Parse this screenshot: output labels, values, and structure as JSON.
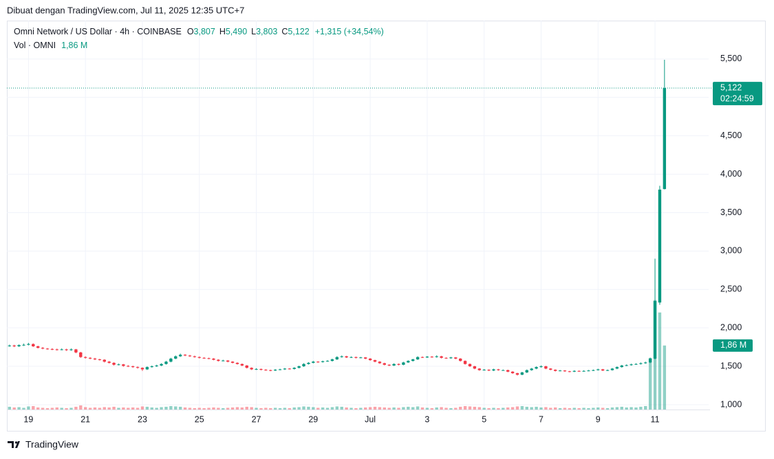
{
  "header": "Dibuat dengan TradingView.com, Jul 11, 2025 12:35 UTC+7",
  "footer": "TradingView",
  "chart_data": {
    "type": "candlestick",
    "title": "Omni Network / US Dollar · 4h · COINBASE",
    "ohlc_legend": [
      {
        "key": "O",
        "value": "3,807"
      },
      {
        "key": "H",
        "value": "5,490"
      },
      {
        "key": "L",
        "value": "3,803"
      },
      {
        "key": "C",
        "value": "5,122"
      }
    ],
    "change": "+1,315 (+34,54%)",
    "volume_title": "Vol · OMNI",
    "volume_label": "1,86 M",
    "last_price_label": "5,122",
    "countdown": "02:24:59",
    "up_color": "#089981",
    "down_color": "#f23645",
    "grid": true,
    "ylim": [
      937,
      6000
    ],
    "yticks": [
      {
        "value": 1000,
        "label": "1,000"
      },
      {
        "value": 1500,
        "label": "1,500"
      },
      {
        "value": 2000,
        "label": "2,000"
      },
      {
        "value": 2500,
        "label": "2,500"
      },
      {
        "value": 3000,
        "label": "3,000"
      },
      {
        "value": 3500,
        "label": "3,500"
      },
      {
        "value": 4000,
        "label": "4,000"
      },
      {
        "value": 4500,
        "label": "4,500"
      },
      {
        "value": 5000,
        "label": "5,000"
      },
      {
        "value": 5500,
        "label": "5,500"
      }
    ],
    "y2lim": [
      0,
      11.3
    ],
    "xlim": [
      -0.55,
      147.3
    ],
    "xticks": [
      {
        "value": 4,
        "label": "19"
      },
      {
        "value": 16,
        "label": "21"
      },
      {
        "value": 28,
        "label": "23"
      },
      {
        "value": 40,
        "label": "25"
      },
      {
        "value": 52,
        "label": "27"
      },
      {
        "value": 64,
        "label": "29"
      },
      {
        "value": 76,
        "label": "Jul"
      },
      {
        "value": 88,
        "label": "3"
      },
      {
        "value": 100,
        "label": "5"
      },
      {
        "value": 112,
        "label": "7"
      },
      {
        "value": 124,
        "label": "9"
      },
      {
        "value": 136,
        "label": "11"
      }
    ],
    "ohlc": [
      [
        1765,
        1782,
        1755,
        1770
      ],
      [
        1770,
        1780,
        1750,
        1760
      ],
      [
        1760,
        1785,
        1752,
        1775
      ],
      [
        1775,
        1795,
        1765,
        1780
      ],
      [
        1780,
        1805,
        1772,
        1790
      ],
      [
        1790,
        1798,
        1752,
        1760
      ],
      [
        1760,
        1768,
        1732,
        1740
      ],
      [
        1740,
        1750,
        1722,
        1730
      ],
      [
        1730,
        1738,
        1716,
        1725
      ],
      [
        1725,
        1735,
        1710,
        1720
      ],
      [
        1720,
        1730,
        1705,
        1715
      ],
      [
        1715,
        1732,
        1708,
        1720
      ],
      [
        1720,
        1728,
        1700,
        1710
      ],
      [
        1710,
        1732,
        1702,
        1720
      ],
      [
        1720,
        1726,
        1670,
        1680
      ],
      [
        1680,
        1688,
        1610,
        1620
      ],
      [
        1620,
        1630,
        1600,
        1610
      ],
      [
        1610,
        1618,
        1592,
        1600
      ],
      [
        1600,
        1610,
        1580,
        1590
      ],
      [
        1590,
        1598,
        1575,
        1585
      ],
      [
        1585,
        1592,
        1550,
        1560
      ],
      [
        1560,
        1568,
        1535,
        1545
      ],
      [
        1545,
        1552,
        1510,
        1520
      ],
      [
        1520,
        1535,
        1512,
        1525
      ],
      [
        1525,
        1530,
        1495,
        1505
      ],
      [
        1505,
        1515,
        1490,
        1500
      ],
      [
        1500,
        1508,
        1480,
        1490
      ],
      [
        1490,
        1498,
        1470,
        1480
      ],
      [
        1480,
        1486,
        1440,
        1460
      ],
      [
        1460,
        1498,
        1452,
        1490
      ],
      [
        1490,
        1510,
        1482,
        1500
      ],
      [
        1500,
        1520,
        1492,
        1510
      ],
      [
        1510,
        1540,
        1502,
        1530
      ],
      [
        1530,
        1570,
        1522,
        1560
      ],
      [
        1560,
        1610,
        1552,
        1600
      ],
      [
        1600,
        1640,
        1592,
        1630
      ],
      [
        1630,
        1665,
        1622,
        1650
      ],
      [
        1650,
        1658,
        1632,
        1640
      ],
      [
        1640,
        1648,
        1622,
        1630
      ],
      [
        1630,
        1638,
        1612,
        1620
      ],
      [
        1620,
        1628,
        1602,
        1610
      ],
      [
        1610,
        1618,
        1598,
        1605
      ],
      [
        1605,
        1612,
        1592,
        1600
      ],
      [
        1600,
        1606,
        1578,
        1585
      ],
      [
        1585,
        1592,
        1562,
        1570
      ],
      [
        1570,
        1585,
        1564,
        1575
      ],
      [
        1575,
        1580,
        1552,
        1560
      ],
      [
        1560,
        1566,
        1538,
        1545
      ],
      [
        1545,
        1552,
        1522,
        1530
      ],
      [
        1530,
        1536,
        1502,
        1510
      ],
      [
        1510,
        1516,
        1472,
        1480
      ],
      [
        1480,
        1486,
        1452,
        1460
      ],
      [
        1460,
        1475,
        1452,
        1465
      ],
      [
        1465,
        1470,
        1446,
        1455
      ],
      [
        1455,
        1462,
        1442,
        1450
      ],
      [
        1450,
        1456,
        1436,
        1445
      ],
      [
        1445,
        1464,
        1438,
        1455
      ],
      [
        1455,
        1468,
        1448,
        1460
      ],
      [
        1460,
        1478,
        1452,
        1470
      ],
      [
        1470,
        1476,
        1458,
        1465
      ],
      [
        1465,
        1488,
        1458,
        1480
      ],
      [
        1480,
        1508,
        1472,
        1500
      ],
      [
        1500,
        1540,
        1492,
        1530
      ],
      [
        1530,
        1555,
        1522,
        1545
      ],
      [
        1545,
        1570,
        1538,
        1560
      ],
      [
        1560,
        1566,
        1546,
        1555
      ],
      [
        1555,
        1574,
        1548,
        1565
      ],
      [
        1565,
        1580,
        1558,
        1570
      ],
      [
        1570,
        1600,
        1562,
        1590
      ],
      [
        1590,
        1630,
        1582,
        1620
      ],
      [
        1620,
        1640,
        1612,
        1630
      ],
      [
        1630,
        1636,
        1608,
        1615
      ],
      [
        1615,
        1628,
        1608,
        1620
      ],
      [
        1620,
        1626,
        1602,
        1610
      ],
      [
        1610,
        1622,
        1604,
        1615
      ],
      [
        1615,
        1620,
        1592,
        1600
      ],
      [
        1600,
        1606,
        1572,
        1580
      ],
      [
        1580,
        1586,
        1552,
        1560
      ],
      [
        1560,
        1566,
        1532,
        1540
      ],
      [
        1540,
        1546,
        1512,
        1520
      ],
      [
        1520,
        1526,
        1502,
        1510
      ],
      [
        1510,
        1538,
        1504,
        1530
      ],
      [
        1530,
        1536,
        1512,
        1520
      ],
      [
        1520,
        1558,
        1514,
        1550
      ],
      [
        1550,
        1578,
        1544,
        1570
      ],
      [
        1570,
        1598,
        1562,
        1590
      ],
      [
        1590,
        1630,
        1582,
        1620
      ],
      [
        1620,
        1628,
        1608,
        1615
      ],
      [
        1615,
        1634,
        1608,
        1625
      ],
      [
        1625,
        1632,
        1612,
        1620
      ],
      [
        1620,
        1642,
        1612,
        1630
      ],
      [
        1630,
        1636,
        1602,
        1610
      ],
      [
        1610,
        1616,
        1598,
        1605
      ],
      [
        1605,
        1622,
        1598,
        1615
      ],
      [
        1615,
        1620,
        1592,
        1600
      ],
      [
        1600,
        1606,
        1562,
        1570
      ],
      [
        1570,
        1576,
        1522,
        1530
      ],
      [
        1530,
        1536,
        1492,
        1500
      ],
      [
        1500,
        1506,
        1462,
        1470
      ],
      [
        1470,
        1476,
        1442,
        1450
      ],
      [
        1450,
        1464,
        1444,
        1455
      ],
      [
        1455,
        1460,
        1438,
        1445
      ],
      [
        1445,
        1468,
        1438,
        1460
      ],
      [
        1460,
        1466,
        1442,
        1450
      ],
      [
        1450,
        1458,
        1442,
        1450
      ],
      [
        1450,
        1456,
        1422,
        1430
      ],
      [
        1430,
        1436,
        1402,
        1410
      ],
      [
        1410,
        1416,
        1380,
        1390
      ],
      [
        1390,
        1428,
        1384,
        1420
      ],
      [
        1420,
        1458,
        1412,
        1450
      ],
      [
        1450,
        1478,
        1442,
        1470
      ],
      [
        1470,
        1498,
        1462,
        1490
      ],
      [
        1490,
        1512,
        1482,
        1500
      ],
      [
        1500,
        1506,
        1462,
        1470
      ],
      [
        1470,
        1476,
        1448,
        1455
      ],
      [
        1455,
        1460,
        1432,
        1440
      ],
      [
        1440,
        1452,
        1434,
        1445
      ],
      [
        1445,
        1450,
        1428,
        1435
      ],
      [
        1435,
        1440,
        1422,
        1430
      ],
      [
        1430,
        1448,
        1424,
        1440
      ],
      [
        1440,
        1445,
        1428,
        1435
      ],
      [
        1435,
        1448,
        1430,
        1440
      ],
      [
        1440,
        1452,
        1434,
        1445
      ],
      [
        1445,
        1458,
        1438,
        1450
      ],
      [
        1450,
        1468,
        1444,
        1460
      ],
      [
        1460,
        1466,
        1438,
        1445
      ],
      [
        1445,
        1458,
        1438,
        1450
      ],
      [
        1450,
        1478,
        1444,
        1470
      ],
      [
        1470,
        1498,
        1462,
        1490
      ],
      [
        1490,
        1518,
        1482,
        1510
      ],
      [
        1510,
        1524,
        1502,
        1515
      ],
      [
        1515,
        1534,
        1508,
        1525
      ],
      [
        1525,
        1540,
        1518,
        1530
      ],
      [
        1530,
        1550,
        1522,
        1540
      ],
      [
        1540,
        1560,
        1532,
        1550
      ],
      [
        1550,
        1612,
        1542,
        1600
      ],
      [
        1600,
        2900,
        1590,
        2350
      ],
      [
        2330,
        3850,
        2300,
        3800
      ],
      [
        3807,
        5490,
        3803,
        5122
      ]
    ],
    "volume": [
      0.08,
      0.06,
      0.07,
      0.05,
      0.09,
      0.1,
      0.06,
      0.05,
      0.04,
      0.05,
      0.06,
      0.05,
      0.04,
      0.05,
      0.08,
      0.12,
      0.07,
      0.05,
      0.06,
      0.05,
      0.07,
      0.06,
      0.08,
      0.05,
      0.06,
      0.05,
      0.06,
      0.05,
      0.09,
      0.08,
      0.06,
      0.05,
      0.07,
      0.08,
      0.1,
      0.09,
      0.08,
      0.06,
      0.05,
      0.04,
      0.05,
      0.04,
      0.05,
      0.06,
      0.05,
      0.04,
      0.05,
      0.06,
      0.07,
      0.06,
      0.08,
      0.07,
      0.05,
      0.04,
      0.05,
      0.04,
      0.05,
      0.04,
      0.05,
      0.04,
      0.06,
      0.07,
      0.09,
      0.08,
      0.07,
      0.05,
      0.06,
      0.05,
      0.07,
      0.09,
      0.08,
      0.06,
      0.05,
      0.04,
      0.05,
      0.06,
      0.07,
      0.08,
      0.07,
      0.06,
      0.05,
      0.06,
      0.05,
      0.07,
      0.08,
      0.07,
      0.09,
      0.06,
      0.05,
      0.04,
      0.06,
      0.07,
      0.05,
      0.04,
      0.05,
      0.08,
      0.1,
      0.09,
      0.08,
      0.07,
      0.05,
      0.04,
      0.05,
      0.04,
      0.05,
      0.06,
      0.07,
      0.09,
      0.1,
      0.08,
      0.07,
      0.08,
      0.06,
      0.07,
      0.05,
      0.06,
      0.04,
      0.05,
      0.04,
      0.05,
      0.04,
      0.05,
      0.04,
      0.05,
      0.06,
      0.05,
      0.04,
      0.06,
      0.07,
      0.08,
      0.06,
      0.07,
      0.06,
      0.08,
      0.1,
      1.5,
      3.18,
      2.82,
      1.86
    ]
  }
}
